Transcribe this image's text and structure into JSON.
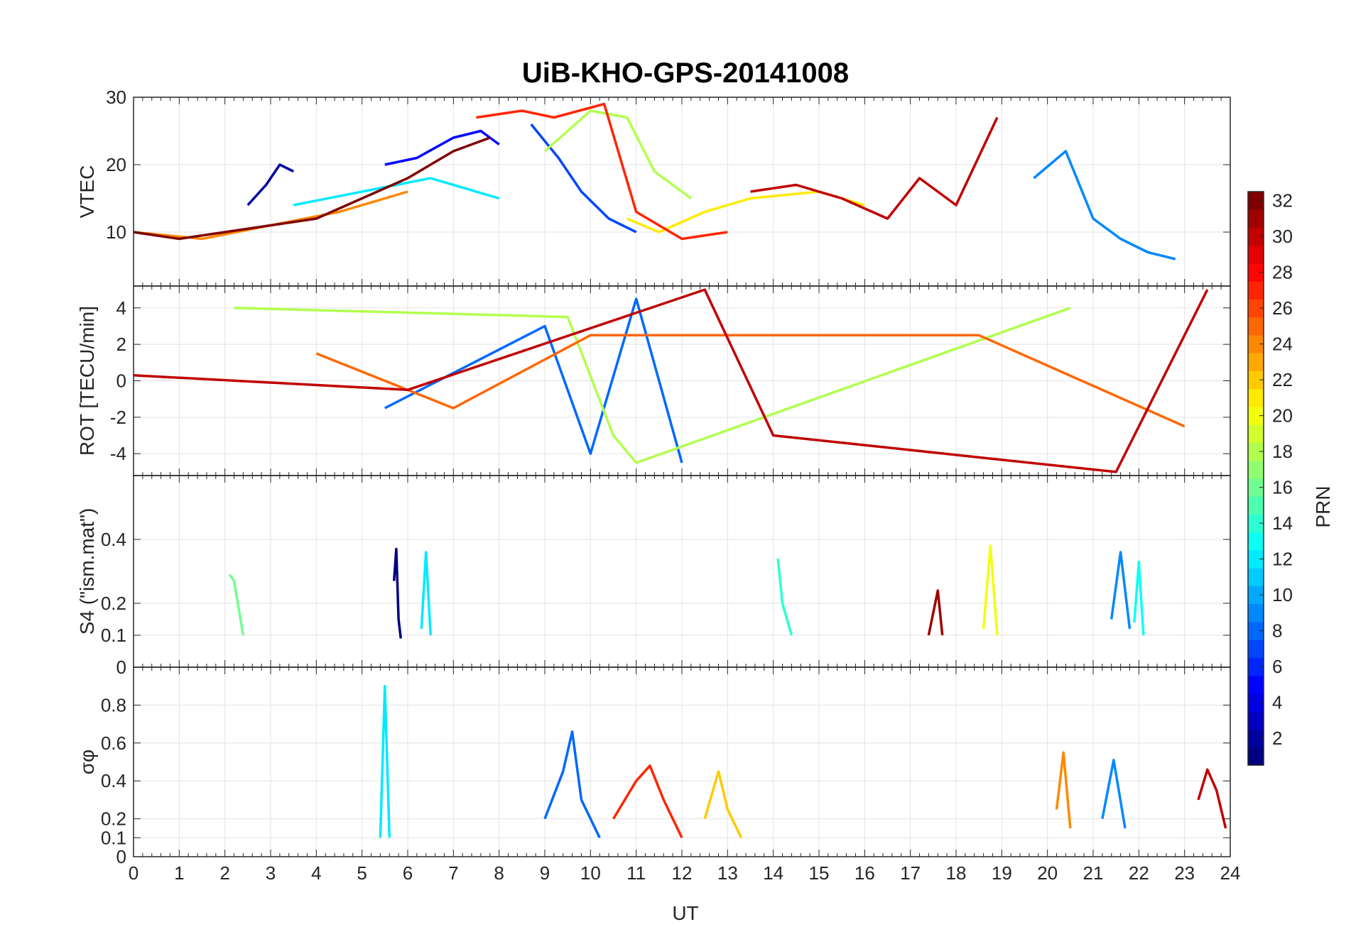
{
  "figure": {
    "title": "UiB-KHO-GPS-20141008",
    "xlabel": "UT"
  },
  "chart_data": [
    {
      "type": "line",
      "panel": "vtec",
      "ylabel": "VTEC",
      "xlim": [
        0,
        24
      ],
      "ylim": [
        2,
        30
      ],
      "yticks": [
        10,
        20,
        30
      ],
      "xticks": [
        0,
        1,
        2,
        3,
        4,
        5,
        6,
        7,
        8,
        9,
        10,
        11,
        12,
        13,
        14,
        15,
        16,
        17,
        18,
        19,
        20,
        21,
        22,
        23,
        24
      ],
      "grid": true,
      "series": [
        {
          "prn": 2,
          "x": [
            2.5,
            2.9,
            3.2,
            3.5
          ],
          "y": [
            14,
            17,
            20,
            19
          ]
        },
        {
          "prn": 5,
          "x": [
            5.5,
            6.2,
            7.0,
            7.6,
            8.0
          ],
          "y": [
            20,
            21,
            24,
            25,
            23
          ]
        },
        {
          "prn": 7,
          "x": [
            8.7,
            9.3,
            9.8,
            10.4,
            11.0
          ],
          "y": [
            26,
            21,
            16,
            12,
            10
          ]
        },
        {
          "prn": 9,
          "x": [
            19.7,
            20.4,
            21.0,
            21.6,
            22.2,
            22.8
          ],
          "y": [
            18,
            22,
            12,
            9,
            7,
            6
          ]
        },
        {
          "prn": 12,
          "x": [
            3.5,
            5.0,
            6.5,
            8.0
          ],
          "y": [
            14,
            16,
            18,
            15
          ]
        },
        {
          "prn": 18,
          "x": [
            9.0,
            10.0,
            10.8,
            11.4,
            12.2
          ],
          "y": [
            22,
            28,
            27,
            19,
            15
          ]
        },
        {
          "prn": 21,
          "x": [
            10.8,
            11.5,
            12.5,
            13.5,
            15.0,
            16.0
          ],
          "y": [
            12,
            10,
            13,
            15,
            16,
            14
          ]
        },
        {
          "prn": 24,
          "x": [
            0.0,
            1.5,
            3.0,
            4.5,
            6.0
          ],
          "y": [
            10,
            9,
            11,
            13,
            16
          ]
        },
        {
          "prn": 27,
          "x": [
            7.5,
            8.5,
            9.2,
            10.3,
            11.0,
            12.0,
            13.0
          ],
          "y": [
            27,
            28,
            27,
            29,
            13,
            9,
            10
          ]
        },
        {
          "prn": 30,
          "x": [
            13.5,
            14.5,
            15.5,
            16.5,
            17.2,
            18.0,
            18.9
          ],
          "y": [
            16,
            17,
            15,
            12,
            18,
            14,
            27
          ]
        },
        {
          "prn": 32,
          "x": [
            0.0,
            1.0,
            2.0,
            3.0,
            4.0,
            5.0,
            6.0,
            7.0,
            7.8
          ],
          "y": [
            10,
            9,
            10,
            11,
            12,
            15,
            18,
            22,
            24
          ]
        }
      ]
    },
    {
      "type": "line",
      "panel": "rot",
      "ylabel": "ROT [TECU/min]",
      "xlim": [
        0,
        24
      ],
      "ylim": [
        -5.2,
        5.2
      ],
      "yticks": [
        -4,
        -2,
        0,
        2,
        4
      ],
      "xticks": [
        0,
        1,
        2,
        3,
        4,
        5,
        6,
        7,
        8,
        9,
        10,
        11,
        12,
        13,
        14,
        15,
        16,
        17,
        18,
        19,
        20,
        21,
        22,
        23,
        24
      ],
      "grid": true,
      "series": [
        {
          "prn": 8,
          "x": [
            5.5,
            9.0,
            10.0,
            11.0,
            12.0
          ],
          "y": [
            -1.5,
            3.0,
            -4.0,
            4.5,
            -4.5
          ]
        },
        {
          "prn": 18,
          "x": [
            2.2,
            9.5,
            10.5,
            11.0,
            20.5
          ],
          "y": [
            4.0,
            3.5,
            -3.0,
            -4.5,
            4.0
          ]
        },
        {
          "prn": 25,
          "x": [
            4.0,
            7.0,
            10.0,
            18.5,
            23.0
          ],
          "y": [
            1.5,
            -1.5,
            2.5,
            2.5,
            -2.5
          ]
        },
        {
          "prn": 30,
          "x": [
            0.0,
            6.0,
            12.5,
            14.0,
            21.5,
            23.5
          ],
          "y": [
            0.3,
            -0.5,
            5.0,
            -3.0,
            -5.0,
            5.0
          ]
        }
      ]
    },
    {
      "type": "line",
      "panel": "s4",
      "ylabel": "S4 (\"ism.mat\")",
      "xlim": [
        0,
        24
      ],
      "ylim": [
        0,
        0.6
      ],
      "yticks": [
        0,
        0.1,
        0.2,
        0.4
      ],
      "xticks": [
        0,
        1,
        2,
        3,
        4,
        5,
        6,
        7,
        8,
        9,
        10,
        11,
        12,
        13,
        14,
        15,
        16,
        17,
        18,
        19,
        20,
        21,
        22,
        23,
        24
      ],
      "grid": true,
      "series": [
        {
          "prn": 1,
          "x": [
            5.7,
            5.75,
            5.8,
            5.85
          ],
          "y": [
            0.27,
            0.37,
            0.15,
            0.09
          ]
        },
        {
          "prn": 12,
          "x": [
            6.3,
            6.4,
            6.5
          ],
          "y": [
            0.12,
            0.36,
            0.1
          ]
        },
        {
          "prn": 16,
          "x": [
            2.1,
            2.2,
            2.4
          ],
          "y": [
            0.29,
            0.27,
            0.1
          ]
        },
        {
          "prn": 14,
          "x": [
            14.1,
            14.2,
            14.4
          ],
          "y": [
            0.34,
            0.2,
            0.1
          ]
        },
        {
          "prn": 20,
          "x": [
            18.6,
            18.75,
            18.9
          ],
          "y": [
            0.12,
            0.38,
            0.1
          ]
        },
        {
          "prn": 9,
          "x": [
            21.4,
            21.6,
            21.8
          ],
          "y": [
            0.15,
            0.36,
            0.12
          ]
        },
        {
          "prn": 13,
          "x": [
            21.9,
            22.0,
            22.1
          ],
          "y": [
            0.14,
            0.33,
            0.1
          ]
        },
        {
          "prn": 31,
          "x": [
            17.4,
            17.6,
            17.7
          ],
          "y": [
            0.1,
            0.24,
            0.1
          ]
        }
      ]
    },
    {
      "type": "line",
      "panel": "sigma_phi",
      "ylabel": "σφ",
      "xlim": [
        0,
        24
      ],
      "ylim": [
        0,
        1
      ],
      "yticks": [
        0,
        0.1,
        0.2,
        0.4,
        0.6,
        0.8
      ],
      "xticks": [
        0,
        1,
        2,
        3,
        4,
        5,
        6,
        7,
        8,
        9,
        10,
        11,
        12,
        13,
        14,
        15,
        16,
        17,
        18,
        19,
        20,
        21,
        22,
        23,
        24
      ],
      "grid": true,
      "series": [
        {
          "prn": 12,
          "x": [
            5.4,
            5.5,
            5.6
          ],
          "y": [
            0.1,
            0.9,
            0.1
          ]
        },
        {
          "prn": 8,
          "x": [
            9.0,
            9.4,
            9.6,
            9.8,
            10.2
          ],
          "y": [
            0.2,
            0.45,
            0.66,
            0.3,
            0.1
          ]
        },
        {
          "prn": 27,
          "x": [
            10.5,
            11.0,
            11.3,
            11.6,
            12.0
          ],
          "y": [
            0.2,
            0.4,
            0.48,
            0.3,
            0.1
          ]
        },
        {
          "prn": 22,
          "x": [
            12.5,
            12.8,
            13.0,
            13.3
          ],
          "y": [
            0.2,
            0.45,
            0.25,
            0.1
          ]
        },
        {
          "prn": 24,
          "x": [
            20.2,
            20.35,
            20.5
          ],
          "y": [
            0.25,
            0.55,
            0.15
          ]
        },
        {
          "prn": 9,
          "x": [
            21.2,
            21.45,
            21.7
          ],
          "y": [
            0.2,
            0.51,
            0.15
          ]
        },
        {
          "prn": 30,
          "x": [
            23.3,
            23.5,
            23.7,
            23.9
          ],
          "y": [
            0.3,
            0.46,
            0.35,
            0.15
          ]
        }
      ]
    }
  ],
  "colorbar": {
    "label": "PRN",
    "range": [
      1,
      32
    ],
    "ticks": [
      2,
      4,
      6,
      8,
      10,
      12,
      14,
      16,
      18,
      20,
      22,
      24,
      26,
      28,
      30,
      32
    ],
    "colormap": "jet"
  }
}
